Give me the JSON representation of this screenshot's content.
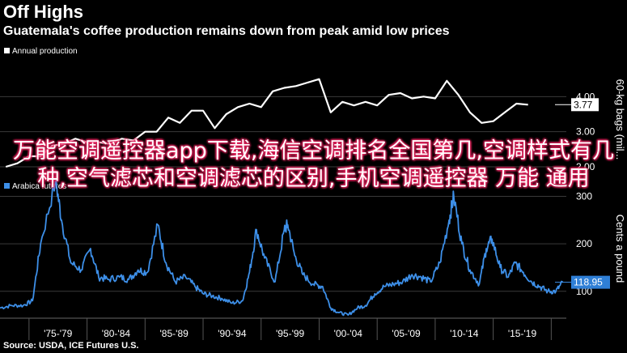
{
  "header": {
    "title": "Off Highs",
    "subtitle": "Guatemala's coffee production remains down from peak amid low prices"
  },
  "source": "Source: USDA, ICE Futures U.S.",
  "overlay_text": "万能空调遥控器app下载,海信空调排名全国第几,空调样式有几种,空气滤芯和空调滤芯的区别,手机空调遥控器 万能 通用",
  "colors": {
    "background": "#000000",
    "production_line": "#ffffff",
    "futures_line": "#3d8fe8",
    "grid": "#3a3a3a",
    "futures_badge": "#2f7fd6"
  },
  "chart_data": [
    {
      "type": "line",
      "legend": "Annual production",
      "legend_placement": "top-left",
      "ylabel": "60-kg bags (mil...",
      "ylim": [
        1.7,
        5.0
      ],
      "yticks": [
        "2.00",
        "3.00",
        "4.00"
      ],
      "ytick_values": [
        2.0,
        3.0,
        4.0
      ],
      "last_value_label": "3.77",
      "x": [
        1973,
        1974,
        1975,
        1976,
        1977,
        1978,
        1979,
        1980,
        1981,
        1982,
        1983,
        1984,
        1985,
        1986,
        1987,
        1988,
        1989,
        1990,
        1991,
        1992,
        1993,
        1994,
        1995,
        1996,
        1997,
        1998,
        1999,
        2000,
        2001,
        2002,
        2003,
        2004,
        2005,
        2006,
        2007,
        2008,
        2009,
        2010,
        2011,
        2012,
        2013,
        2014,
        2015,
        2016,
        2017,
        2018
      ],
      "y": [
        2.0,
        2.1,
        2.3,
        2.3,
        2.6,
        2.65,
        2.8,
        2.7,
        2.7,
        2.65,
        2.8,
        2.75,
        3.0,
        3.0,
        3.4,
        3.25,
        3.6,
        3.6,
        3.1,
        3.5,
        3.7,
        3.8,
        3.7,
        4.15,
        4.25,
        4.3,
        4.4,
        4.5,
        3.55,
        3.85,
        3.75,
        3.85,
        3.75,
        4.05,
        4.1,
        3.95,
        4.0,
        3.95,
        4.45,
        4.05,
        3.55,
        3.25,
        3.3,
        3.55,
        3.8,
        3.77
      ]
    },
    {
      "type": "line",
      "legend": "Arabica futures",
      "legend_placement": "top-left",
      "ylabel": "Cents a pound",
      "ylim": [
        45,
        335
      ],
      "yticks": [
        "100",
        "200",
        "300"
      ],
      "ytick_values": [
        100,
        200,
        300
      ],
      "last_value_label": "118.95",
      "x": [
        1972.5,
        1973.5,
        1974.5,
        1975.3,
        1976.0,
        1977.3,
        1977.8,
        1978.6,
        1979.5,
        1980.3,
        1981.0,
        1981.8,
        1982.8,
        1983.6,
        1984.4,
        1985.2,
        1986.1,
        1986.8,
        1987.6,
        1988.5,
        1989.3,
        1990.0,
        1990.8,
        1991.6,
        1992.5,
        1993.4,
        1994.0,
        1994.6,
        1995.3,
        1996.2,
        1997.0,
        1997.3,
        1997.9,
        1998.6,
        1999.5,
        2000.3,
        2001.0,
        2001.7,
        2002.5,
        2003.3,
        2004.0,
        2004.8,
        2005.6,
        2006.4,
        2007.2,
        2008.0,
        2008.8,
        2009.6,
        2010.4,
        2011.2,
        2011.6,
        2012.3,
        2013.0,
        2013.8,
        2014.4,
        2014.9,
        2015.6,
        2016.3,
        2016.9,
        2017.6,
        2018.3,
        2019.0,
        2019.7,
        2020.4,
        2021.0
      ],
      "y": [
        65,
        70,
        70,
        80,
        200,
        335,
        250,
        160,
        145,
        190,
        130,
        125,
        130,
        125,
        145,
        140,
        240,
        160,
        120,
        130,
        110,
        95,
        90,
        85,
        75,
        80,
        140,
        230,
        170,
        120,
        230,
        240,
        175,
        135,
        115,
        110,
        65,
        55,
        50,
        65,
        70,
        95,
        110,
        115,
        120,
        135,
        130,
        120,
        160,
        250,
        300,
        200,
        145,
        115,
        190,
        210,
        150,
        130,
        160,
        140,
        120,
        110,
        100,
        100,
        119
      ]
    }
  ],
  "x_axis": {
    "tick_labels": [
      "'75-'79",
      "'80-'84",
      "'85-'89",
      "'90-'94",
      "'95-'99",
      "'00-'04",
      "'05-'09",
      "'10-'14",
      "'15-'19"
    ],
    "tick_starts": [
      1975,
      1980,
      1985,
      1990,
      1995,
      2000,
      2005,
      2010,
      2015
    ]
  }
}
